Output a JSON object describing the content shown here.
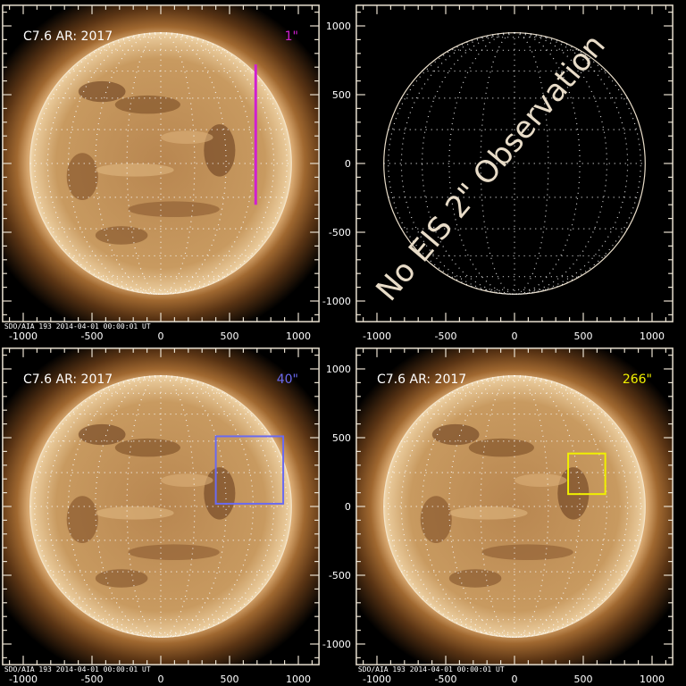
{
  "figure": {
    "panels": [
      {
        "id": "top-left",
        "has_image": true,
        "title": "C7.6 AR: 2017",
        "slit_label": "1\"",
        "slit_color": "#d020d0",
        "slit_type": "line",
        "slit_x_arcsec": 690,
        "slit_y_arcsec": [
          -300,
          720
        ],
        "footer": "SDO/AIA 193  2014-04-01 00:00:01 UT"
      },
      {
        "id": "top-right",
        "has_image": false,
        "message": "No EIS 2\" Observation",
        "message_color": "#e8dcc8"
      },
      {
        "id": "bottom-left",
        "has_image": true,
        "title": "C7.6 AR: 2017",
        "slit_label": "40\"",
        "slit_color": "#6a6af0",
        "slit_type": "box",
        "box_x_arcsec": [
          400,
          890
        ],
        "box_y_arcsec": [
          20,
          510
        ],
        "footer": "SDO/AIA 193  2014-04-01 00:00:01 UT"
      },
      {
        "id": "bottom-right",
        "has_image": true,
        "title": "C7.6 AR: 2017",
        "slit_label": "266\"",
        "slit_color": "#f0f000",
        "slit_type": "box",
        "box_x_arcsec": [
          390,
          660
        ],
        "box_y_arcsec": [
          90,
          385
        ],
        "footer": "SDO/AIA 193  2014-04-01 00:00:01 UT"
      }
    ],
    "axes": {
      "x_ticks": [
        -1000,
        -500,
        0,
        500,
        1000
      ],
      "y_ticks": [
        1000,
        500,
        0,
        -500,
        -1000
      ],
      "xlim": [
        -1150,
        1150
      ],
      "ylim": [
        -1150,
        1150
      ],
      "units": "arcsec"
    },
    "colors": {
      "frame": "#e8e0d0",
      "grid": "#ffffff",
      "disk": "#c8965a",
      "corona": "#7a4a1e"
    }
  }
}
